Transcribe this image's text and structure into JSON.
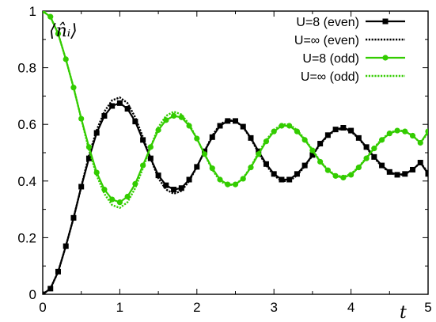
{
  "chart_data": {
    "type": "line",
    "xlabel": "t",
    "ylabel": "⟨n̂ᵢ⟩",
    "xlim": [
      0,
      5
    ],
    "ylim": [
      0,
      1
    ],
    "x_ticks": [
      "0",
      "1",
      "2",
      "3",
      "4",
      "5"
    ],
    "y_ticks": [
      "0",
      "0.2",
      "0.4",
      "0.6",
      "0.8",
      "1"
    ],
    "grid": false,
    "legend_position": "top-right",
    "colors": {
      "black": "#000000",
      "green": "#33cc00"
    },
    "series": [
      {
        "name": "U=8 (even)",
        "color": "#000000",
        "style": "solid",
        "marker": "square",
        "x": [
          0,
          0.1,
          0.2,
          0.3,
          0.4,
          0.5,
          0.6,
          0.7,
          0.8,
          0.9,
          1.0,
          1.1,
          1.2,
          1.3,
          1.4,
          1.5,
          1.6,
          1.7,
          1.8,
          1.9,
          2.0,
          2.1,
          2.2,
          2.3,
          2.4,
          2.5,
          2.6,
          2.7,
          2.8,
          2.9,
          3.0,
          3.1,
          3.2,
          3.3,
          3.4,
          3.5,
          3.6,
          3.7,
          3.8,
          3.9,
          4.0,
          4.1,
          4.2,
          4.3,
          4.4,
          4.5,
          4.6,
          4.7,
          4.8,
          4.9,
          5.0
        ],
        "y": [
          0.0,
          0.02,
          0.08,
          0.17,
          0.27,
          0.38,
          0.48,
          0.57,
          0.63,
          0.665,
          0.675,
          0.655,
          0.61,
          0.545,
          0.48,
          0.42,
          0.385,
          0.37,
          0.375,
          0.405,
          0.45,
          0.505,
          0.555,
          0.595,
          0.612,
          0.612,
          0.592,
          0.552,
          0.505,
          0.46,
          0.425,
          0.405,
          0.405,
          0.425,
          0.455,
          0.492,
          0.532,
          0.562,
          0.582,
          0.588,
          0.578,
          0.552,
          0.52,
          0.485,
          0.455,
          0.432,
          0.422,
          0.425,
          0.44,
          0.465,
          0.425
        ]
      },
      {
        "name": "U=∞ (even)",
        "color": "#000000",
        "style": "dotted",
        "marker": "none",
        "x": [
          0,
          0.1,
          0.2,
          0.3,
          0.4,
          0.5,
          0.6,
          0.7,
          0.8,
          0.9,
          1.0,
          1.1,
          1.2,
          1.3,
          1.4,
          1.5,
          1.6,
          1.7,
          1.8,
          1.9,
          2.0,
          2.1,
          2.2,
          2.3,
          2.4,
          2.5,
          2.6,
          2.7,
          2.8,
          2.9,
          3.0,
          3.1,
          3.2,
          3.3,
          3.4,
          3.5,
          3.6,
          3.7,
          3.8,
          3.9,
          4.0,
          4.1,
          4.2,
          4.3,
          4.4,
          4.5,
          4.6,
          4.7,
          4.8,
          4.9,
          5.0
        ],
        "y": [
          0.0,
          0.02,
          0.08,
          0.17,
          0.27,
          0.38,
          0.49,
          0.58,
          0.645,
          0.685,
          0.695,
          0.675,
          0.625,
          0.555,
          0.48,
          0.41,
          0.37,
          0.355,
          0.365,
          0.4,
          0.45,
          0.505,
          0.56,
          0.6,
          0.615,
          0.612,
          0.59,
          0.55,
          0.5,
          0.455,
          0.42,
          0.4,
          0.4,
          0.42,
          0.452,
          0.49,
          0.53,
          0.56,
          0.58,
          0.585,
          0.575,
          0.55,
          0.518,
          0.482,
          0.452,
          0.43,
          0.42,
          0.424,
          0.44,
          0.465,
          0.43
        ]
      },
      {
        "name": "U=8 (odd)",
        "color": "#33cc00",
        "style": "solid",
        "marker": "circle",
        "x": [
          0,
          0.1,
          0.2,
          0.3,
          0.4,
          0.5,
          0.6,
          0.7,
          0.8,
          0.9,
          1.0,
          1.1,
          1.2,
          1.3,
          1.4,
          1.5,
          1.6,
          1.7,
          1.8,
          1.9,
          2.0,
          2.1,
          2.2,
          2.3,
          2.4,
          2.5,
          2.6,
          2.7,
          2.8,
          2.9,
          3.0,
          3.1,
          3.2,
          3.3,
          3.4,
          3.5,
          3.6,
          3.7,
          3.8,
          3.9,
          4.0,
          4.1,
          4.2,
          4.3,
          4.4,
          4.5,
          4.6,
          4.7,
          4.8,
          4.9,
          5.0
        ],
        "y": [
          1.0,
          0.98,
          0.92,
          0.83,
          0.73,
          0.62,
          0.52,
          0.43,
          0.37,
          0.335,
          0.325,
          0.345,
          0.39,
          0.455,
          0.52,
          0.58,
          0.615,
          0.63,
          0.625,
          0.595,
          0.55,
          0.495,
          0.445,
          0.405,
          0.388,
          0.388,
          0.408,
          0.448,
          0.495,
          0.54,
          0.575,
          0.595,
          0.595,
          0.575,
          0.545,
          0.508,
          0.468,
          0.438,
          0.418,
          0.412,
          0.422,
          0.448,
          0.48,
          0.515,
          0.545,
          0.568,
          0.578,
          0.575,
          0.56,
          0.535,
          0.575
        ]
      },
      {
        "name": "U=∞ (odd)",
        "color": "#33cc00",
        "style": "dotted",
        "marker": "none",
        "x": [
          0,
          0.1,
          0.2,
          0.3,
          0.4,
          0.5,
          0.6,
          0.7,
          0.8,
          0.9,
          1.0,
          1.1,
          1.2,
          1.3,
          1.4,
          1.5,
          1.6,
          1.7,
          1.8,
          1.9,
          2.0,
          2.1,
          2.2,
          2.3,
          2.4,
          2.5,
          2.6,
          2.7,
          2.8,
          2.9,
          3.0,
          3.1,
          3.2,
          3.3,
          3.4,
          3.5,
          3.6,
          3.7,
          3.8,
          3.9,
          4.0,
          4.1,
          4.2,
          4.3,
          4.4,
          4.5,
          4.6,
          4.7,
          4.8,
          4.9,
          5.0
        ],
        "y": [
          1.0,
          0.98,
          0.92,
          0.83,
          0.73,
          0.62,
          0.51,
          0.42,
          0.355,
          0.315,
          0.305,
          0.325,
          0.375,
          0.445,
          0.52,
          0.59,
          0.63,
          0.645,
          0.635,
          0.6,
          0.55,
          0.495,
          0.44,
          0.4,
          0.385,
          0.388,
          0.41,
          0.45,
          0.5,
          0.545,
          0.58,
          0.6,
          0.6,
          0.58,
          0.548,
          0.51,
          0.47,
          0.44,
          0.42,
          0.415,
          0.425,
          0.45,
          0.482,
          0.518,
          0.548,
          0.57,
          0.58,
          0.576,
          0.56,
          0.535,
          0.57
        ]
      }
    ]
  }
}
